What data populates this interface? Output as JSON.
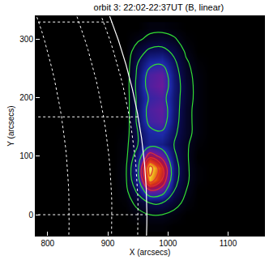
{
  "chart_data": {
    "type": "heatmap",
    "title": "orbit 3: 22:02-22:37UT (B, linear)",
    "xlabel": "X (arcsecs)",
    "ylabel": "Y (arcsecs)",
    "xlim": [
      780,
      1160
    ],
    "ylim": [
      -36,
      340
    ],
    "xticks": [
      800,
      900,
      1000,
      1100
    ],
    "yticks": [
      0,
      100,
      200,
      300
    ],
    "grid": true,
    "limb_radius": 965,
    "zlim": [
      0,
      100
    ],
    "x": [
      790,
      810,
      830,
      850,
      870,
      890,
      910,
      930,
      950,
      970,
      990,
      1010,
      1030,
      1050,
      1070,
      1090,
      1110,
      1130,
      1150
    ],
    "y": [
      -20,
      0,
      20,
      40,
      60,
      80,
      100,
      120,
      140,
      160,
      180,
      200,
      220,
      240,
      260,
      280,
      300,
      320
    ],
    "cells": [
      [
        0,
        0,
        0,
        0,
        0,
        0,
        0,
        0,
        0,
        1,
        1,
        0,
        0,
        0,
        0,
        0,
        0,
        0,
        0
      ],
      [
        0,
        0,
        0,
        0,
        0,
        0,
        0,
        0,
        2,
        4,
        4,
        2,
        0,
        0,
        0,
        0,
        0,
        0,
        0
      ],
      [
        0,
        0,
        0,
        0,
        0,
        0,
        0,
        1,
        6,
        12,
        12,
        7,
        2,
        0,
        0,
        0,
        0,
        0,
        0
      ],
      [
        0,
        0,
        0,
        0,
        0,
        0,
        0,
        2,
        14,
        40,
        35,
        12,
        4,
        0,
        0,
        0,
        0,
        0,
        0
      ],
      [
        0,
        0,
        0,
        0,
        0,
        0,
        0,
        3,
        22,
        85,
        60,
        16,
        5,
        1,
        0,
        0,
        0,
        0,
        0
      ],
      [
        0,
        0,
        0,
        0,
        0,
        0,
        0,
        3,
        24,
        95,
        65,
        17,
        5,
        1,
        0,
        0,
        0,
        0,
        0
      ],
      [
        0,
        0,
        0,
        0,
        0,
        0,
        0,
        2,
        18,
        55,
        40,
        14,
        5,
        0,
        0,
        0,
        0,
        0,
        0
      ],
      [
        0,
        0,
        0,
        0,
        0,
        0,
        0,
        2,
        12,
        22,
        20,
        12,
        5,
        1,
        0,
        0,
        0,
        0,
        0
      ],
      [
        0,
        0,
        0,
        0,
        0,
        0,
        0,
        1,
        12,
        24,
        26,
        14,
        6,
        2,
        0,
        0,
        0,
        0,
        0
      ],
      [
        0,
        0,
        0,
        0,
        0,
        0,
        0,
        0,
        14,
        32,
        36,
        16,
        6,
        2,
        0,
        0,
        0,
        0,
        0
      ],
      [
        0,
        0,
        0,
        0,
        0,
        0,
        0,
        0,
        14,
        34,
        38,
        17,
        6,
        2,
        0,
        0,
        0,
        0,
        0
      ],
      [
        0,
        0,
        0,
        0,
        0,
        0,
        0,
        0,
        14,
        30,
        34,
        17,
        7,
        2,
        0,
        0,
        0,
        0,
        0
      ],
      [
        0,
        0,
        0,
        0,
        0,
        0,
        0,
        0,
        15,
        35,
        40,
        18,
        7,
        2,
        0,
        0,
        0,
        0,
        0
      ],
      [
        0,
        0,
        0,
        0,
        0,
        0,
        0,
        0,
        14,
        34,
        38,
        17,
        6,
        2,
        0,
        0,
        0,
        0,
        0
      ],
      [
        0,
        0,
        0,
        0,
        0,
        0,
        0,
        0,
        12,
        24,
        26,
        14,
        5,
        1,
        0,
        0,
        0,
        0,
        0
      ],
      [
        0,
        0,
        0,
        0,
        0,
        0,
        0,
        0,
        8,
        14,
        15,
        10,
        3,
        0,
        0,
        0,
        0,
        0,
        0
      ],
      [
        0,
        0,
        0,
        0,
        0,
        0,
        0,
        0,
        3,
        6,
        7,
        5,
        1,
        0,
        0,
        0,
        0,
        0,
        0
      ],
      [
        0,
        0,
        0,
        0,
        0,
        0,
        0,
        0,
        0,
        2,
        2,
        1,
        0,
        0,
        0,
        0,
        0,
        0,
        0
      ]
    ],
    "contour_levels": [
      {
        "value": 4,
        "color": "#33dd33"
      },
      {
        "value": 12,
        "color": "#33dd33"
      },
      {
        "value": 28,
        "color": "#33dd33"
      },
      {
        "value": 45,
        "color": "#e03030"
      },
      {
        "value": 60,
        "color": "#e03030"
      },
      {
        "value": 75,
        "color": "#e03030"
      },
      {
        "value": 88,
        "color": "#e03030"
      }
    ]
  }
}
